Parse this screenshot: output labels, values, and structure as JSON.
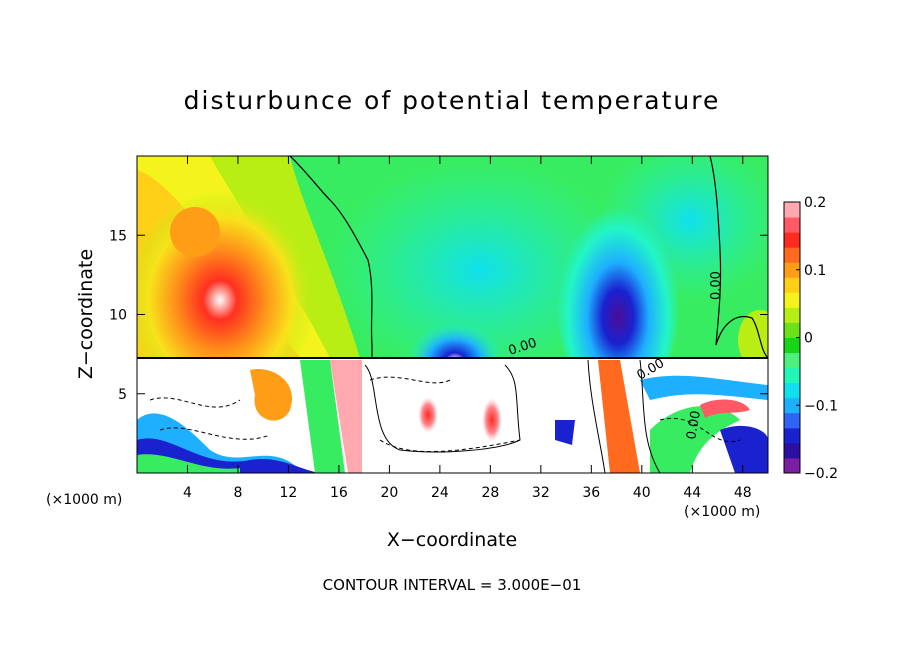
{
  "chart_data": {
    "type": "heatmap",
    "title": "disturbunce of potential temperature",
    "xlabel": "X−coordinate",
    "ylabel": "Z−coordinate",
    "x_multiplier_label": "(×1000 m)",
    "z_multiplier_label": "(×1000 m)",
    "xlim": [
      0,
      50
    ],
    "ylim": [
      0,
      20
    ],
    "x_ticks": [
      4,
      8,
      12,
      16,
      20,
      24,
      28,
      32,
      36,
      40,
      44,
      48
    ],
    "x_tick_labels": [
      "4",
      "8",
      "12",
      "16",
      "20",
      "24",
      "28",
      "32",
      "36",
      "40",
      "44",
      "48"
    ],
    "y_ticks": [
      5,
      10,
      15
    ],
    "y_tick_labels": [
      "5",
      "10",
      "15"
    ],
    "colorbar": {
      "min": -0.2,
      "max": 0.2,
      "tick_values": [
        0.2,
        0.1,
        0,
        -0.1,
        -0.2
      ],
      "tick_labels": [
        "0.2",
        "0.1",
        "0",
        "−0.1",
        "−0.2"
      ],
      "colors": [
        "#7b1fa2",
        "#2a0fa0",
        "#1a22d0",
        "#2f63f3",
        "#1eb0ff",
        "#10e0ee",
        "#22f5b8",
        "#4cf07a",
        "#17d61a",
        "#6be11a",
        "#b4ee14",
        "#f4f41c",
        "#ffcf17",
        "#ff9d17",
        "#ff6a1f",
        "#ff2a20",
        "#ff5a66",
        "#ffa8b0"
      ]
    },
    "contour_labels": [
      "0.00",
      "0.00",
      "0.00",
      "0.00"
    ],
    "contour_interval_text": "CONTOUR INTERVAL = 3.000E−01",
    "features": [
      {
        "name": "warm anomaly",
        "x": 8,
        "z": 11,
        "value": 0.2
      },
      {
        "name": "cool anomaly",
        "x": 25,
        "z": 8,
        "value": -0.12
      },
      {
        "name": "cool anomaly",
        "x": 37.5,
        "z": 10,
        "value": -0.2
      },
      {
        "name": "warm anomaly",
        "x": 49,
        "z": 9,
        "value": 0.05
      }
    ],
    "grid": false,
    "legend": "colorbar right"
  }
}
